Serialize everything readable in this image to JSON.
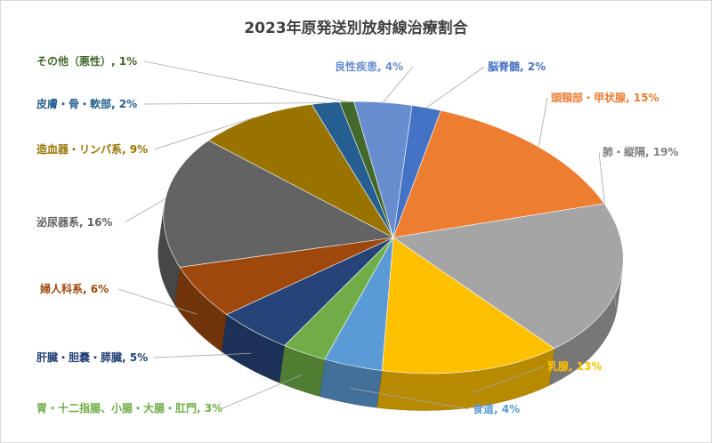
{
  "chart_data": {
    "type": "pie",
    "title": "2023年原発送別放射線治療割合",
    "slices": [
      {
        "label": "脳脊髄",
        "value": 2,
        "value_text": "2%",
        "color": "#4472C4"
      },
      {
        "label": "頭頸部・甲状腺",
        "value": 15,
        "value_text": "15%",
        "color": "#ED7D31"
      },
      {
        "label": "肺・縦隔",
        "value": 19,
        "value_text": "19%",
        "color": "#A5A5A5"
      },
      {
        "label": "乳腺",
        "value": 13,
        "value_text": "13%",
        "color": "#FFC000"
      },
      {
        "label": "食道",
        "value": 4,
        "value_text": "4%",
        "color": "#5B9BD5"
      },
      {
        "label": "胃・十二指腸、小腸・大腸・肛門",
        "value": 3,
        "value_text": "3%",
        "color": "#70AD47"
      },
      {
        "label": "肝臓・胆嚢・膵臓",
        "value": 5,
        "value_text": "5%",
        "color": "#264478"
      },
      {
        "label": "婦人科系",
        "value": 6,
        "value_text": "6%",
        "color": "#9E480E"
      },
      {
        "label": "泌尿器系",
        "value": 16,
        "value_text": "16%",
        "color": "#636363"
      },
      {
        "label": "造血器・リンパ系",
        "value": 9,
        "value_text": "9%",
        "color": "#997300"
      },
      {
        "label": "皮膚・骨・軟部",
        "value": 2,
        "value_text": "2%",
        "color": "#255E91"
      },
      {
        "label": "その他（悪性）",
        "value": 1,
        "value_text": "1%",
        "color": "#43682B"
      },
      {
        "label": "良性疾患",
        "value": 4,
        "value_text": "4%",
        "color": "#698ED0"
      }
    ]
  }
}
